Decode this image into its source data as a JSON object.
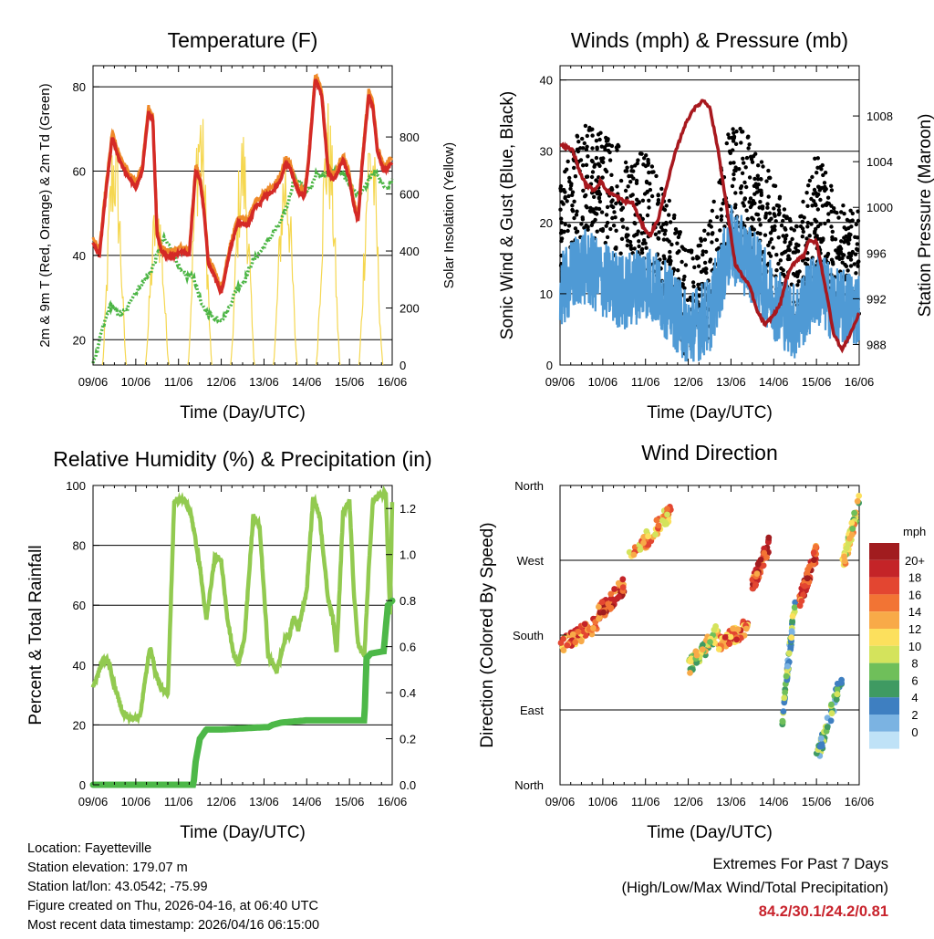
{
  "colors": {
    "red": "#d42a26",
    "orange": "#ef8a2a",
    "green": "#4bb544",
    "yellow": "#f5d750",
    "black": "#000000",
    "blue": "#4f9ad5",
    "maroon": "#a8181e",
    "rh": "#92ca50",
    "precip": "#4db848"
  },
  "x_tick_labels": [
    "09/06",
    "10/06",
    "11/06",
    "12/06",
    "13/06",
    "14/06",
    "15/06",
    "16/06"
  ],
  "chart_data": [
    {
      "type": "line",
      "title": "Temperature (F)",
      "xlabel": "Time (Day/UTC)",
      "ylabel": "2m & 9m T (Red, Orange) & 2m Td (Green)",
      "y2label": "Solar Insolation (Yellow)",
      "xlim": [
        0,
        7
      ],
      "ylim": [
        14,
        85
      ],
      "y2lim": [
        0,
        1050
      ],
      "yticks": [
        20,
        40,
        60,
        80
      ],
      "y2ticks": [
        0,
        200,
        400,
        600,
        800
      ],
      "series": [
        {
          "name": "2m T",
          "color": "#d42a26",
          "x": [
            0,
            0.15,
            0.3,
            0.45,
            0.6,
            0.8,
            1.0,
            1.15,
            1.3,
            1.4,
            1.5,
            1.6,
            1.7,
            1.9,
            2.1,
            2.25,
            2.4,
            2.5,
            2.6,
            2.7,
            2.85,
            3.0,
            3.1,
            3.2,
            3.4,
            3.6,
            3.7,
            3.8,
            3.9,
            4.0,
            4.2,
            4.4,
            4.5,
            4.6,
            4.8,
            4.95,
            5.05,
            5.2,
            5.35,
            5.5,
            5.6,
            5.7,
            5.85,
            6.0,
            6.1,
            6.2,
            6.3,
            6.45,
            6.55,
            6.65,
            6.8,
            7.0
          ],
          "y": [
            43,
            40,
            55,
            68,
            63,
            59,
            56,
            60,
            74,
            72,
            45,
            41,
            40,
            40,
            41,
            40,
            60,
            58,
            50,
            38,
            35,
            31,
            36,
            41,
            48,
            47,
            49,
            52,
            52,
            54,
            55,
            58,
            62,
            61,
            55,
            54,
            63,
            82,
            78,
            60,
            58,
            59,
            63,
            58,
            52,
            48,
            62,
            78,
            75,
            65,
            60,
            62
          ]
        },
        {
          "name": "2m Td",
          "color": "#4bb544",
          "x": [
            0,
            0.1,
            0.2,
            0.4,
            0.6,
            0.8,
            0.9,
            1.05,
            1.2,
            1.35,
            1.5,
            1.65,
            1.8,
            1.95,
            2.05,
            2.2,
            2.35,
            2.55,
            2.7,
            2.9,
            3.05,
            3.2,
            3.35,
            3.55,
            3.7,
            3.85,
            4.0,
            4.2,
            4.4,
            4.55,
            4.7,
            4.9,
            5.0,
            5.1,
            5.2,
            5.35,
            5.5,
            5.7,
            5.85,
            6.0,
            6.15,
            6.3,
            6.45,
            6.6,
            6.75,
            6.9,
            7.0
          ],
          "y": [
            15,
            17,
            22,
            28,
            26,
            27,
            30,
            32,
            34,
            36,
            40,
            44,
            42,
            39,
            36,
            35,
            35,
            28,
            26,
            25,
            25,
            28,
            32,
            34,
            38,
            40,
            42,
            45,
            48,
            52,
            58,
            57,
            55,
            56,
            59,
            59,
            60,
            60,
            59,
            57,
            55,
            55,
            58,
            60,
            57,
            56,
            58
          ]
        },
        {
          "name": "Solar",
          "axis": "y2",
          "color": "#f5d750",
          "days": [
            0,
            1,
            2,
            3,
            4,
            5,
            6
          ],
          "peaks": [
            870,
            650,
            1000,
            860,
            800,
            950,
            920
          ],
          "width": 0.28
        }
      ]
    },
    {
      "type": "scatter",
      "title": "Winds (mph) & Pressure (mb)",
      "xlabel": "Time (Day/UTC)",
      "ylabel": "Sonic Wind & Gust (Blue, Black)",
      "y2label": "Station Pressure (Maroon)",
      "xlim": [
        0,
        7
      ],
      "ylim": [
        0,
        42
      ],
      "y2lim": [
        986.2,
        1012.4
      ],
      "yticks": [
        0,
        10,
        20,
        30,
        40
      ],
      "y2ticks": [
        988,
        992,
        996,
        1000,
        1004,
        1008
      ],
      "wind": {
        "x": [
          0,
          0.5,
          1.0,
          1.5,
          2.0,
          2.5,
          3.0,
          3.5,
          4.0,
          4.5,
          5.0,
          5.5,
          6.0,
          6.5,
          7.0
        ],
        "y": [
          10,
          14,
          12,
          10,
          12,
          9,
          5,
          7,
          17,
          14,
          9,
          6,
          11,
          8,
          8
        ]
      },
      "gust": {
        "x": [
          0,
          0.5,
          1.0,
          1.5,
          2.0,
          2.5,
          3.0,
          3.5,
          4.0,
          4.5,
          5.0,
          5.5,
          6.0,
          6.5,
          7.0
        ],
        "y": [
          18,
          26,
          25,
          22,
          22,
          16,
          8,
          12,
          27,
          24,
          18,
          11,
          22,
          15,
          14
        ]
      },
      "pressure": {
        "x": [
          0,
          0.3,
          0.45,
          0.6,
          0.8,
          0.95,
          1.1,
          1.3,
          1.5,
          1.7,
          1.9,
          2.1,
          2.3,
          2.5,
          2.7,
          2.9,
          3.1,
          3.25,
          3.35,
          3.5,
          3.7,
          3.9,
          4.1,
          4.3,
          4.45,
          4.6,
          4.8,
          5.0,
          5.15,
          5.3,
          5.45,
          5.6,
          5.7,
          5.8,
          6.0,
          6.2,
          6.4,
          6.6,
          6.8,
          7.0
        ],
        "y": [
          1005.5,
          1005,
          1003.2,
          1002,
          1001.5,
          1002.3,
          1001.4,
          1001,
          1000.5,
          1000.4,
          998.6,
          997.5,
          999,
          1002,
          1004.8,
          1007,
          1008.5,
          1009,
          1009.4,
          1008.8,
          1005,
          1000,
          995,
          993.8,
          993,
          991,
          989.7,
          990.6,
          991.5,
          993.8,
          995,
          995.6,
          995.7,
          997,
          997,
          993.2,
          989,
          987.5,
          989,
          990.7
        ]
      }
    },
    {
      "type": "line",
      "title": "Relative Humidity (%) & Precipitation (in)",
      "xlabel": "Time (Day/UTC)",
      "ylabel": "Percent & Total Rainfall",
      "xlim": [
        0,
        7
      ],
      "ylim": [
        0,
        100
      ],
      "y2lim": [
        0,
        1.3
      ],
      "yticks": [
        0,
        20,
        40,
        60,
        80,
        100
      ],
      "y2ticks": [
        0.0,
        0.2,
        0.4,
        0.6,
        0.8,
        1.0,
        1.2
      ],
      "series": [
        {
          "name": "Relative Humidity",
          "color": "#92ca50",
          "x": [
            0,
            0.1,
            0.2,
            0.35,
            0.5,
            0.7,
            0.9,
            1.1,
            1.2,
            1.3,
            1.35,
            1.45,
            1.6,
            1.75,
            1.9,
            2.0,
            2.15,
            2.3,
            2.5,
            2.65,
            2.85,
            3.0,
            3.15,
            3.3,
            3.4,
            3.55,
            3.75,
            3.9,
            4.1,
            4.3,
            4.5,
            4.6,
            4.7,
            4.8,
            5.0,
            5.15,
            5.3,
            5.5,
            5.6,
            5.7,
            5.85,
            6.0,
            6.1,
            6.2,
            6.35,
            6.45,
            6.55,
            6.75,
            6.85,
            6.95,
            7.0
          ],
          "y": [
            33,
            36,
            41,
            42,
            33,
            24,
            22,
            23,
            33,
            43,
            46,
            38,
            32,
            30,
            95,
            95,
            95,
            90,
            73,
            55,
            76,
            75,
            55,
            43,
            40,
            50,
            90,
            86,
            43,
            38,
            49,
            50,
            56,
            52,
            65,
            96,
            90,
            62,
            57,
            44,
            91,
            95,
            65,
            47,
            43,
            72,
            95,
            97,
            98,
            57,
            95
          ]
        },
        {
          "name": "Total Precipitation",
          "axis": "y2",
          "color": "#4db848",
          "x": [
            0,
            2.35,
            2.4,
            2.5,
            2.65,
            3.0,
            3.5,
            4.0,
            4.1,
            4.2,
            4.4,
            5.0,
            5.8,
            6.35,
            6.4,
            6.5,
            6.8,
            6.9,
            7.0
          ],
          "y": [
            0,
            0,
            0.1,
            0.2,
            0.24,
            0.24,
            0.245,
            0.25,
            0.25,
            0.26,
            0.27,
            0.28,
            0.28,
            0.28,
            0.55,
            0.57,
            0.58,
            0.78,
            0.8
          ]
        }
      ]
    },
    {
      "type": "scatter",
      "title": "Wind Direction",
      "xlabel": "Time (Day/UTC)",
      "ylabel": "Direction (Colored By Speed)",
      "xlim": [
        0,
        7
      ],
      "ylim": [
        0,
        360
      ],
      "ytick_labels": [
        "North",
        "East",
        "South",
        "West",
        "North"
      ],
      "ytick_values": [
        0,
        90,
        180,
        270,
        360
      ],
      "legend": {
        "title": "mph",
        "labels": [
          "20+",
          "18",
          "16",
          "14",
          "12",
          "10",
          "8",
          "6",
          "4",
          "2",
          "0"
        ],
        "colors": [
          "#a11c1f",
          "#c42428",
          "#e34631",
          "#f27434",
          "#f8aa48",
          "#fce05d",
          "#d4e35c",
          "#6fbf5a",
          "#3f9a62",
          "#3e7fc1",
          "#7bb3e2",
          "#bfe2f7"
        ]
      },
      "clusters": [
        {
          "x0": 0,
          "x1": 0.9,
          "d0": 165,
          "d1": 195,
          "speed": 14
        },
        {
          "x0": 0.9,
          "x1": 1.5,
          "d0": 205,
          "d1": 240,
          "speed": 16
        },
        {
          "x0": 1.6,
          "x1": 2.6,
          "d0": 270,
          "d1": 330,
          "speed": 12
        },
        {
          "x0": 3.0,
          "x1": 3.7,
          "d0": 140,
          "d1": 185,
          "speed": 8
        },
        {
          "x0": 3.7,
          "x1": 4.4,
          "d0": 170,
          "d1": 190,
          "speed": 14
        },
        {
          "x0": 4.5,
          "x1": 4.9,
          "d0": 240,
          "d1": 290,
          "speed": 17
        },
        {
          "x0": 5.2,
          "x1": 5.5,
          "d0": 80,
          "d1": 220,
          "speed": 5
        },
        {
          "x0": 5.6,
          "x1": 6.0,
          "d0": 220,
          "d1": 280,
          "speed": 16
        },
        {
          "x0": 6.0,
          "x1": 6.6,
          "d0": 30,
          "d1": 130,
          "speed": 4
        },
        {
          "x0": 6.6,
          "x1": 7.0,
          "d0": 260,
          "d1": 340,
          "speed": 9
        }
      ]
    }
  ],
  "info": {
    "location": "Location: Fayetteville",
    "elevation": "Station elevation: 179.07 m",
    "latlon": "Station lat/lon: 43.0542; -75.99",
    "created": "Figure created on Thu, 2026-04-16, at 06:40 UTC",
    "timestamp": "Most recent data timestamp: 2026/04/16 06:15:00"
  },
  "extremes": {
    "line1": "Extremes For Past 7 Days",
    "line2": "(High/Low/Max Wind/Total Precipitation)",
    "values": "84.2/30.1/24.2/0.81"
  }
}
